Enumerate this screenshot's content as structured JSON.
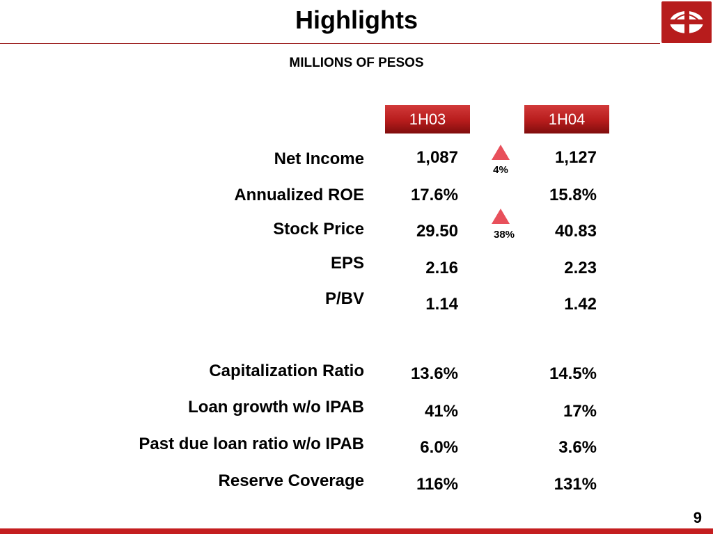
{
  "title": "Highlights",
  "subtitle": "MILLIONS OF PESOS",
  "columns": {
    "first": "1H03",
    "second": "1H04"
  },
  "rows": [
    {
      "label": "Net Income",
      "v1": "1,087",
      "v2": "1,127"
    },
    {
      "label": "Annualized ROE",
      "v1": "17.6%",
      "v2": "15.8%"
    },
    {
      "label": "Stock Price",
      "v1": "29.50",
      "v2": "40.83"
    },
    {
      "label": "EPS",
      "v1": "2.16",
      "v2": "2.23"
    },
    {
      "label": "P/BV",
      "v1": "1.14",
      "v2": "1.42"
    },
    {
      "label": "Capitalization Ratio",
      "v1": "13.6%",
      "v2": "14.5%"
    },
    {
      "label": "Loan growth w/o IPAB",
      "v1": "41%",
      "v2": "17%"
    },
    {
      "label": "Past due loan ratio w/o IPAB",
      "v1": "6.0%",
      "v2": "3.6%"
    },
    {
      "label": "Reserve Coverage",
      "v1": "116%",
      "v2": "131%"
    }
  ],
  "changes": [
    {
      "row": "Net Income",
      "direction": "up",
      "pct": "4%"
    },
    {
      "row": "Stock Price",
      "direction": "up",
      "pct": "38%"
    }
  ],
  "page_number": "9",
  "colors": {
    "accent": "#b71c1c",
    "arrow": "#e8505b"
  },
  "icons": {
    "logo": "bank-logo-icon",
    "change": "up-arrow-icon"
  }
}
